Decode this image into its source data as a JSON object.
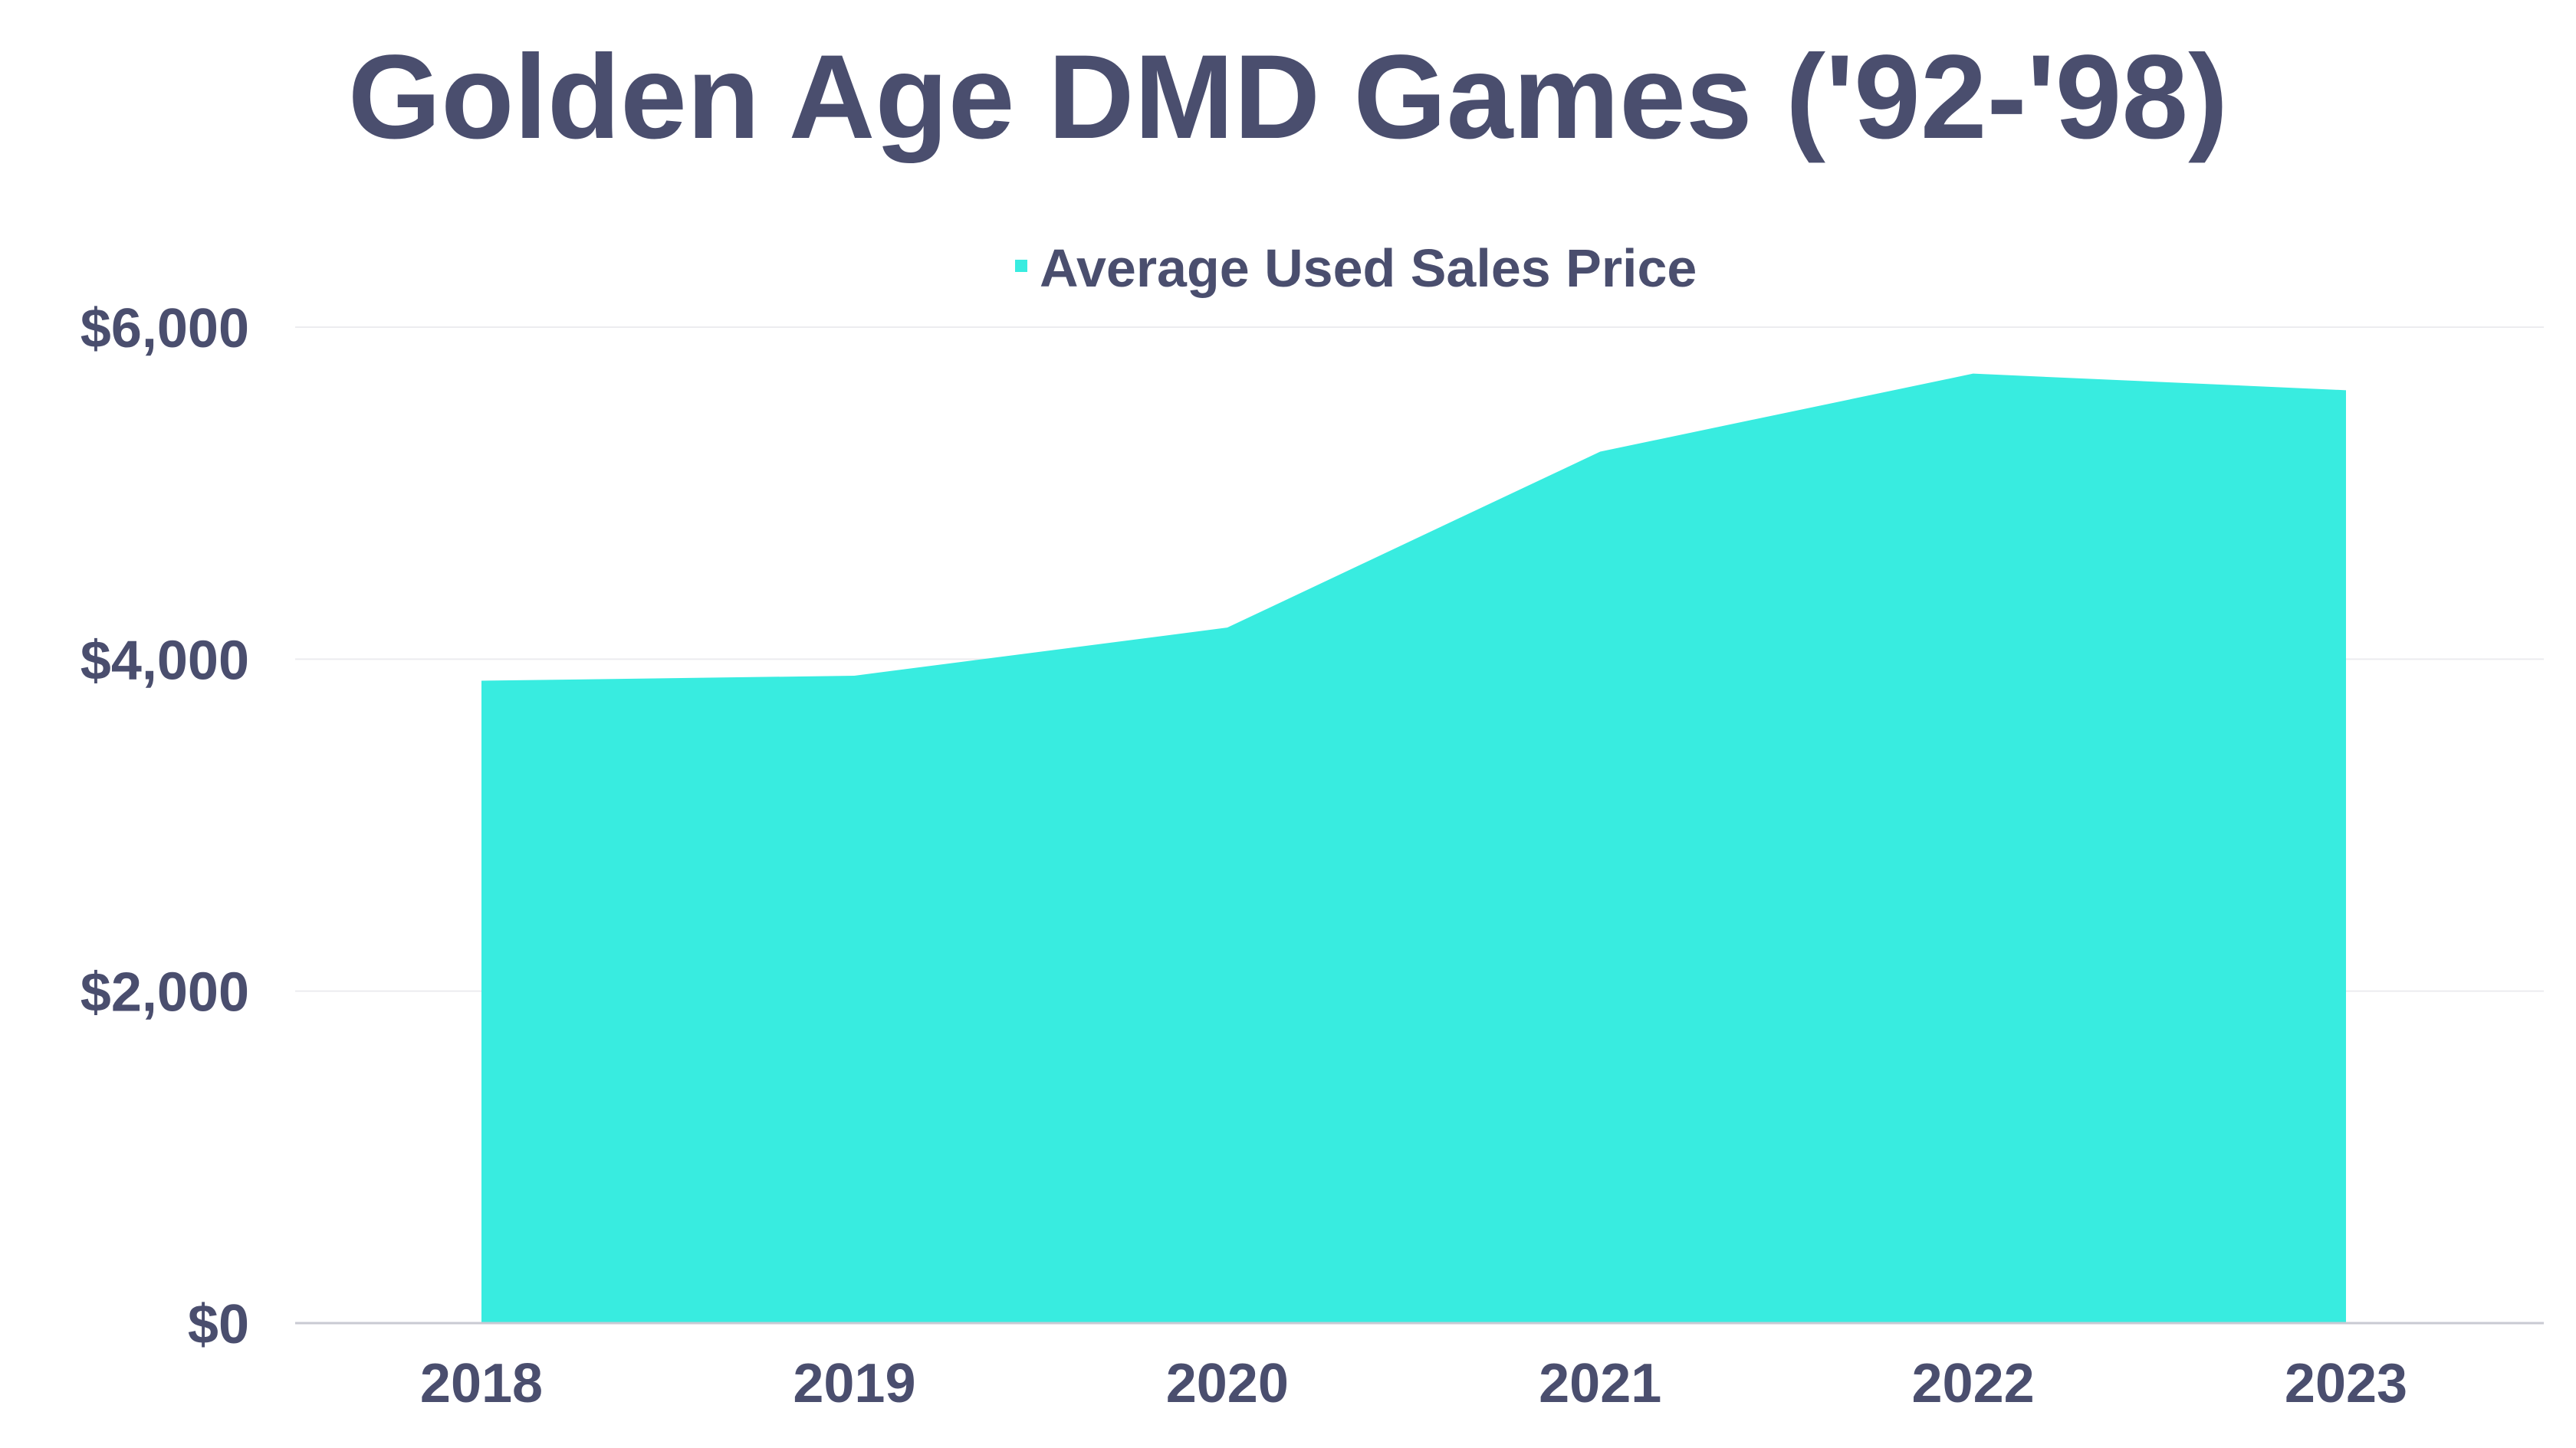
{
  "chart_data": {
    "type": "area",
    "title": "Golden Age DMD Games ('92-'98)",
    "categories": [
      "2018",
      "2019",
      "2020",
      "2021",
      "2022",
      "2023"
    ],
    "series": [
      {
        "name": "Average Used Sales Price",
        "values": [
          3870,
          3900,
          4190,
          5250,
          5720,
          5620
        ],
        "color": "#38ece0"
      }
    ],
    "ylim": [
      0,
      6000
    ],
    "yticks": [
      0,
      2000,
      4000,
      6000
    ],
    "ytick_labels": [
      "$0",
      "$2,000",
      "$4,000",
      "$6,000"
    ],
    "xlabel": "",
    "ylabel": "",
    "grid": true,
    "legend_position": "top",
    "text_color": "#4a4e6e"
  }
}
